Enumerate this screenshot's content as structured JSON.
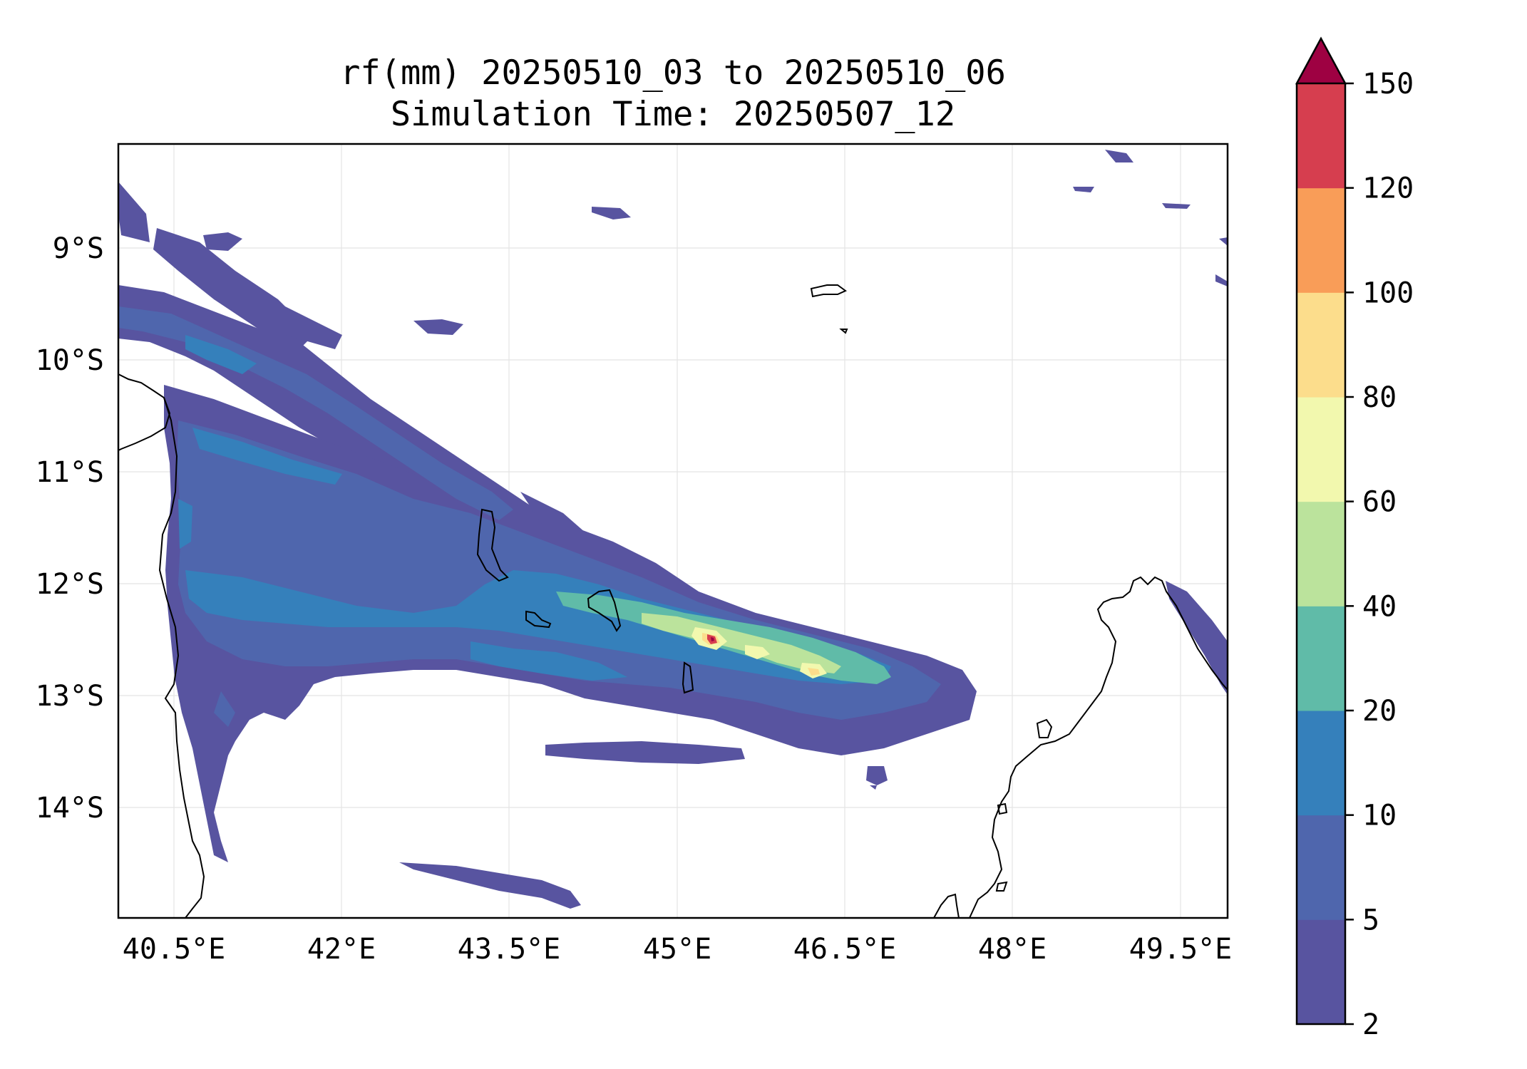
{
  "title_line1": "rf(mm) 20250510_03 to 20250510_06",
  "title_line2": "Simulation Time: 20250507_12",
  "map": {
    "region": "Mozambique Channel, northern Mozambique and northern Madagascar",
    "lon_range": [
      40.1,
      50.0
    ],
    "lat_range": [
      -15.0,
      -8.1
    ],
    "x_ticks": [
      "40.5°E",
      "42°E",
      "43.5°E",
      "45°E",
      "46.5°E",
      "48°E",
      "49.5°E"
    ],
    "y_ticks": [
      "9°S",
      "10°S",
      "11°S",
      "12°S",
      "13°S",
      "14°S"
    ],
    "gridlines": true,
    "coastline_color": "#000000"
  },
  "colorbar": {
    "tick_labels": [
      "2",
      "5",
      "10",
      "20",
      "40",
      "60",
      "80",
      "100",
      "120",
      "150"
    ],
    "levels": [
      2,
      5,
      10,
      20,
      40,
      60,
      80,
      100,
      120,
      150
    ],
    "colors": [
      "#5854a0",
      "#4f66ad",
      "#3580bb",
      "#60bba8",
      "#bbe39c",
      "#f2f8ae",
      "#fcdd8c",
      "#f99d58",
      "#d63e4f"
    ],
    "extend_color": "#9e0142",
    "extend": "max"
  }
}
